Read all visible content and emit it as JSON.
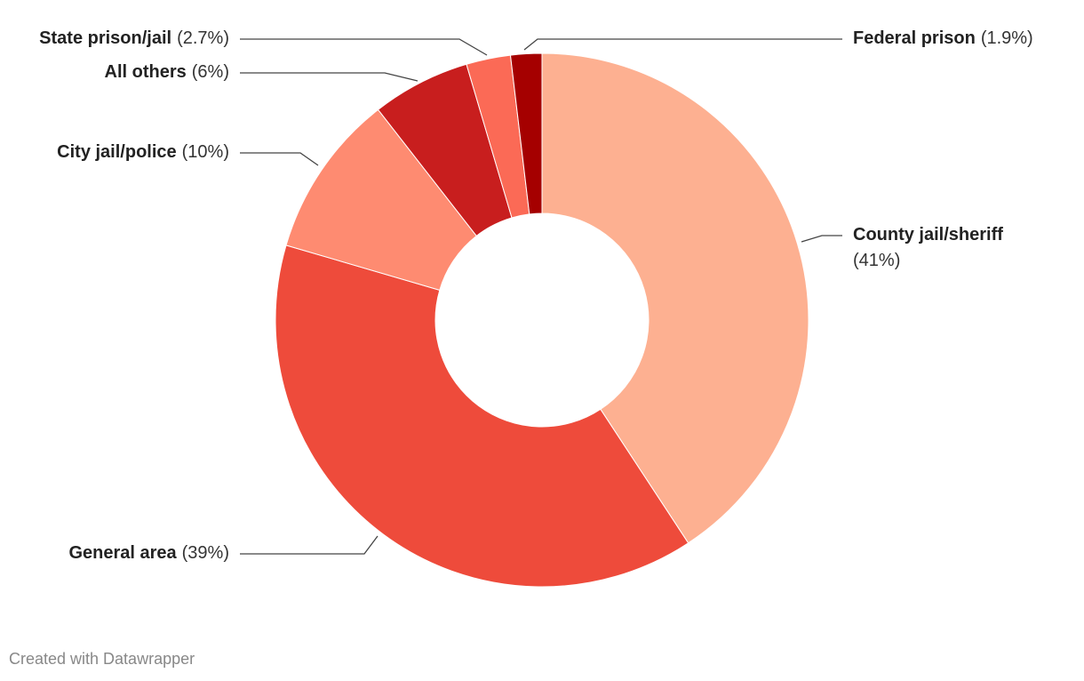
{
  "chart_data": {
    "type": "donut",
    "categories": [
      "County jail/sheriff",
      "General area",
      "City jail/police",
      "All others",
      "State prison/jail",
      "Federal prison"
    ],
    "values": [
      41,
      39,
      10,
      6,
      2.7,
      1.9
    ],
    "value_labels": [
      "(41%)",
      "(39%)",
      "(10%)",
      "(6%)",
      "(2.7%)",
      "(1.9%)"
    ],
    "colors": [
      "#fdb091",
      "#ee4b3b",
      "#fe8b71",
      "#c81e1e",
      "#fb6a56",
      "#a50000"
    ],
    "credit": "Created with Datawrapper"
  }
}
